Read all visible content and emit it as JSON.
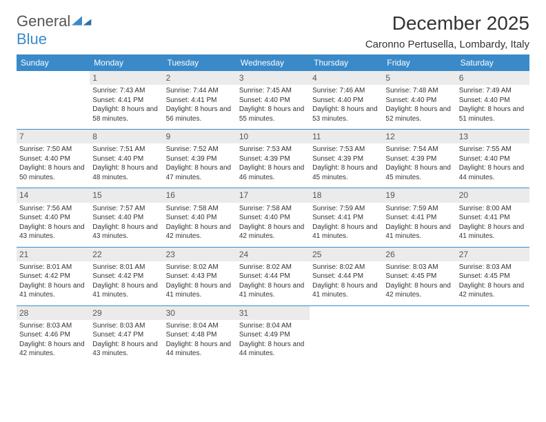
{
  "brand": {
    "word1": "General",
    "word2": "Blue"
  },
  "header": {
    "title": "December 2025",
    "location": "Caronno Pertusella, Lombardy, Italy"
  },
  "colors": {
    "primary": "#3a8ac9",
    "header_bg": "#3a8ac9",
    "daynum_bg": "#ebebeb",
    "text": "#333333"
  },
  "day_labels": [
    "Sunday",
    "Monday",
    "Tuesday",
    "Wednesday",
    "Thursday",
    "Friday",
    "Saturday"
  ],
  "layout": {
    "first_weekday_index": 1,
    "days_in_month": 31
  },
  "days": {
    "1": {
      "sunrise": "7:43 AM",
      "sunset": "4:41 PM",
      "daylight_h": 8,
      "daylight_m": 58
    },
    "2": {
      "sunrise": "7:44 AM",
      "sunset": "4:41 PM",
      "daylight_h": 8,
      "daylight_m": 56
    },
    "3": {
      "sunrise": "7:45 AM",
      "sunset": "4:40 PM",
      "daylight_h": 8,
      "daylight_m": 55
    },
    "4": {
      "sunrise": "7:46 AM",
      "sunset": "4:40 PM",
      "daylight_h": 8,
      "daylight_m": 53
    },
    "5": {
      "sunrise": "7:48 AM",
      "sunset": "4:40 PM",
      "daylight_h": 8,
      "daylight_m": 52
    },
    "6": {
      "sunrise": "7:49 AM",
      "sunset": "4:40 PM",
      "daylight_h": 8,
      "daylight_m": 51
    },
    "7": {
      "sunrise": "7:50 AM",
      "sunset": "4:40 PM",
      "daylight_h": 8,
      "daylight_m": 50
    },
    "8": {
      "sunrise": "7:51 AM",
      "sunset": "4:40 PM",
      "daylight_h": 8,
      "daylight_m": 48
    },
    "9": {
      "sunrise": "7:52 AM",
      "sunset": "4:39 PM",
      "daylight_h": 8,
      "daylight_m": 47
    },
    "10": {
      "sunrise": "7:53 AM",
      "sunset": "4:39 PM",
      "daylight_h": 8,
      "daylight_m": 46
    },
    "11": {
      "sunrise": "7:53 AM",
      "sunset": "4:39 PM",
      "daylight_h": 8,
      "daylight_m": 45
    },
    "12": {
      "sunrise": "7:54 AM",
      "sunset": "4:39 PM",
      "daylight_h": 8,
      "daylight_m": 45
    },
    "13": {
      "sunrise": "7:55 AM",
      "sunset": "4:40 PM",
      "daylight_h": 8,
      "daylight_m": 44
    },
    "14": {
      "sunrise": "7:56 AM",
      "sunset": "4:40 PM",
      "daylight_h": 8,
      "daylight_m": 43
    },
    "15": {
      "sunrise": "7:57 AM",
      "sunset": "4:40 PM",
      "daylight_h": 8,
      "daylight_m": 43
    },
    "16": {
      "sunrise": "7:58 AM",
      "sunset": "4:40 PM",
      "daylight_h": 8,
      "daylight_m": 42
    },
    "17": {
      "sunrise": "7:58 AM",
      "sunset": "4:40 PM",
      "daylight_h": 8,
      "daylight_m": 42
    },
    "18": {
      "sunrise": "7:59 AM",
      "sunset": "4:41 PM",
      "daylight_h": 8,
      "daylight_m": 41
    },
    "19": {
      "sunrise": "7:59 AM",
      "sunset": "4:41 PM",
      "daylight_h": 8,
      "daylight_m": 41
    },
    "20": {
      "sunrise": "8:00 AM",
      "sunset": "4:41 PM",
      "daylight_h": 8,
      "daylight_m": 41
    },
    "21": {
      "sunrise": "8:01 AM",
      "sunset": "4:42 PM",
      "daylight_h": 8,
      "daylight_m": 41
    },
    "22": {
      "sunrise": "8:01 AM",
      "sunset": "4:42 PM",
      "daylight_h": 8,
      "daylight_m": 41
    },
    "23": {
      "sunrise": "8:02 AM",
      "sunset": "4:43 PM",
      "daylight_h": 8,
      "daylight_m": 41
    },
    "24": {
      "sunrise": "8:02 AM",
      "sunset": "4:44 PM",
      "daylight_h": 8,
      "daylight_m": 41
    },
    "25": {
      "sunrise": "8:02 AM",
      "sunset": "4:44 PM",
      "daylight_h": 8,
      "daylight_m": 41
    },
    "26": {
      "sunrise": "8:03 AM",
      "sunset": "4:45 PM",
      "daylight_h": 8,
      "daylight_m": 42
    },
    "27": {
      "sunrise": "8:03 AM",
      "sunset": "4:45 PM",
      "daylight_h": 8,
      "daylight_m": 42
    },
    "28": {
      "sunrise": "8:03 AM",
      "sunset": "4:46 PM",
      "daylight_h": 8,
      "daylight_m": 42
    },
    "29": {
      "sunrise": "8:03 AM",
      "sunset": "4:47 PM",
      "daylight_h": 8,
      "daylight_m": 43
    },
    "30": {
      "sunrise": "8:04 AM",
      "sunset": "4:48 PM",
      "daylight_h": 8,
      "daylight_m": 44
    },
    "31": {
      "sunrise": "8:04 AM",
      "sunset": "4:49 PM",
      "daylight_h": 8,
      "daylight_m": 44
    }
  }
}
